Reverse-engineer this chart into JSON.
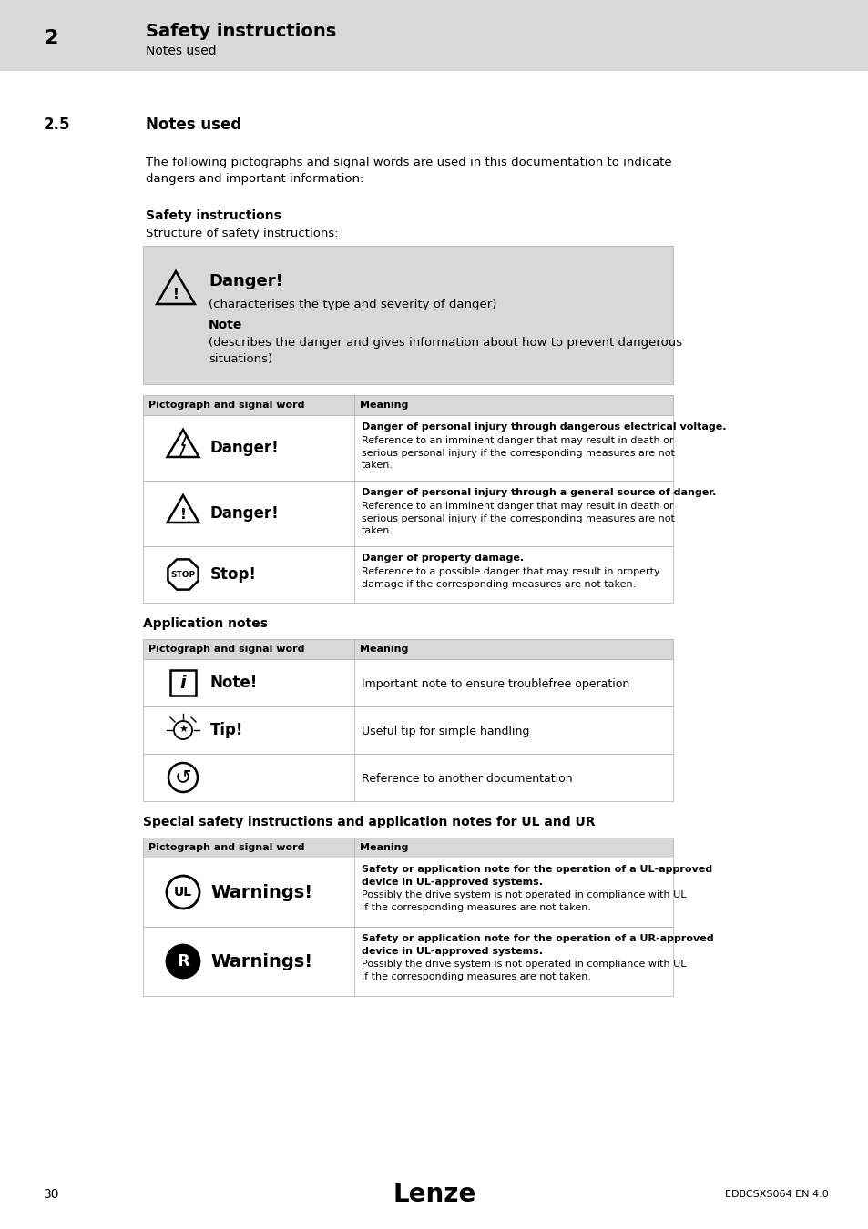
{
  "header_bg": "#d8d8d8",
  "page_bg": "#ffffff",
  "header_number": "2",
  "header_title": "Safety instructions",
  "header_subtitle": "Notes used",
  "section_number": "2.5",
  "section_title": "Notes used",
  "intro_text": "The following pictographs and signal words are used in this documentation to indicate\ndangers and important information:",
  "safety_bold": "Safety instructions",
  "structure_text": "Structure of safety instructions:",
  "danger_box_bg": "#d8d8d8",
  "danger_box_title": "Danger!",
  "danger_box_line1": "(characterises the type and severity of danger)",
  "danger_box_note": "Note",
  "danger_box_line2": "(describes the danger and gives information about how to prevent dangerous\nsituations)",
  "table1_header_col1": "Pictograph and signal word",
  "table1_header_col2": "Meaning",
  "table1_rows": [
    {
      "signal": "Danger!",
      "icon": "triangle_lightning",
      "meaning_bold": "Danger of personal injury through dangerous electrical voltage.",
      "meaning_text": "Reference to an imminent danger that may result in death or\nserious personal injury if the corresponding measures are not\ntaken."
    },
    {
      "signal": "Danger!",
      "icon": "triangle_plain",
      "meaning_bold": "Danger of personal injury through a general source of danger.",
      "meaning_text": "Reference to an imminent danger that may result in death or\nserious personal injury if the corresponding measures are not\ntaken."
    },
    {
      "signal": "Stop!",
      "icon": "stop",
      "meaning_bold": "Danger of property damage.",
      "meaning_text": "Reference to a possible danger that may result in property\ndamage if the corresponding measures are not taken."
    }
  ],
  "app_notes_bold": "Application notes",
  "table2_header_col1": "Pictograph and signal word",
  "table2_header_col2": "Meaning",
  "table2_rows": [
    {
      "signal": "Note!",
      "icon": "info",
      "meaning_text": "Important note to ensure troublefree operation"
    },
    {
      "signal": "Tip!",
      "icon": "tip",
      "meaning_text": "Useful tip for simple handling"
    },
    {
      "signal": "",
      "icon": "ref",
      "meaning_text": "Reference to another documentation"
    }
  ],
  "special_bold": "Special safety instructions and application notes for UL and UR",
  "table3_header_col1": "Pictograph and signal word",
  "table3_header_col2": "Meaning",
  "table3_rows": [
    {
      "signal": "Warnings!",
      "icon": "ul",
      "meaning_bold": "Safety or application note for the operation of a UL-approved\ndevice in UL-approved systems.",
      "meaning_text": "Possibly the drive system is not operated in compliance with UL\nif the corresponding measures are not taken."
    },
    {
      "signal": "Warnings!",
      "icon": "ur",
      "meaning_bold": "Safety or application note for the operation of a UR-approved\ndevice in UL-approved systems.",
      "meaning_text": "Possibly the drive system is not operated in compliance with UL\nif the corresponding measures are not taken."
    }
  ],
  "footer_page": "30",
  "footer_brand": "Lenze",
  "footer_doc": "EDBCSXS064 EN 4.0"
}
